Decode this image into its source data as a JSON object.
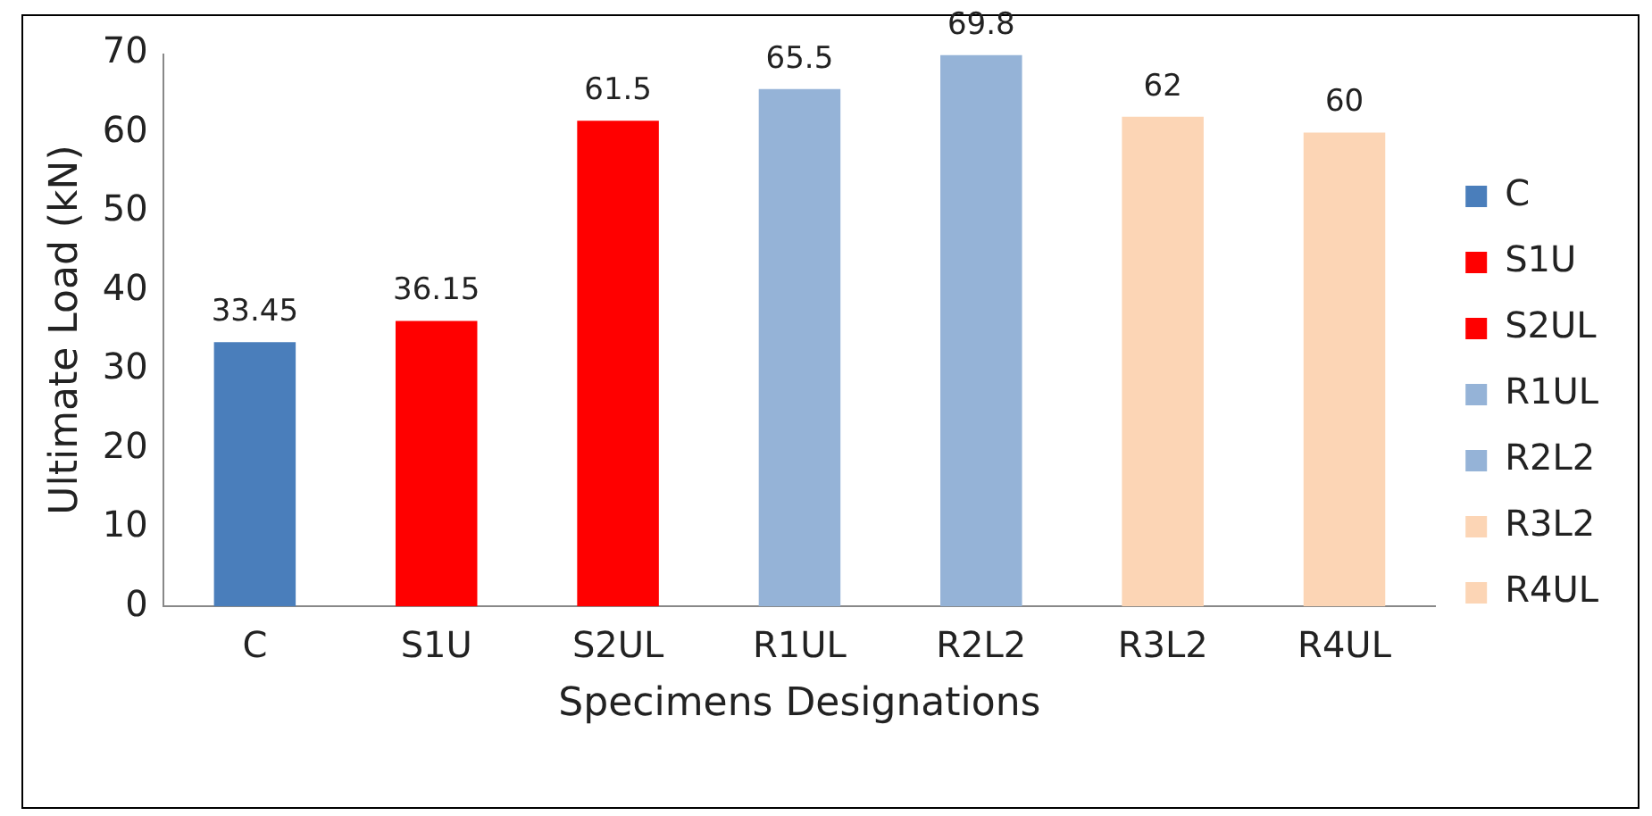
{
  "chart_data": {
    "type": "bar",
    "xlabel": "Specimens Designations",
    "ylabel": "Ultimate Load (kN)",
    "categories": [
      "C",
      "S1U",
      "S2UL",
      "R1UL",
      "R2L2",
      "R3L2",
      "R4UL"
    ],
    "series": [
      {
        "name": "C",
        "color": "#4a7ebb",
        "values": [
          33.45,
          null,
          null,
          null,
          null,
          null,
          null
        ]
      },
      {
        "name": "S1U",
        "color": "#ff0000",
        "values": [
          null,
          36.15,
          null,
          null,
          null,
          null,
          null
        ]
      },
      {
        "name": "S2UL",
        "color": "#ff0000",
        "values": [
          null,
          null,
          61.5,
          null,
          null,
          null,
          null
        ]
      },
      {
        "name": "R1UL",
        "color": "#95b3d7",
        "values": [
          null,
          null,
          null,
          65.5,
          null,
          null,
          null
        ]
      },
      {
        "name": "R2L2",
        "color": "#95b3d7",
        "values": [
          null,
          null,
          null,
          null,
          69.8,
          null,
          null
        ]
      },
      {
        "name": "R3L2",
        "color": "#fcd5b5",
        "values": [
          null,
          null,
          null,
          null,
          null,
          62,
          null
        ]
      },
      {
        "name": "R4UL",
        "color": "#fcd5b5",
        "values": [
          null,
          null,
          null,
          null,
          null,
          null,
          60
        ]
      }
    ],
    "ylim": [
      0,
      70
    ],
    "yticks": [
      0,
      10,
      20,
      30,
      40,
      50,
      60,
      70
    ],
    "grid": false,
    "legend": "right",
    "data_labels": true
  }
}
